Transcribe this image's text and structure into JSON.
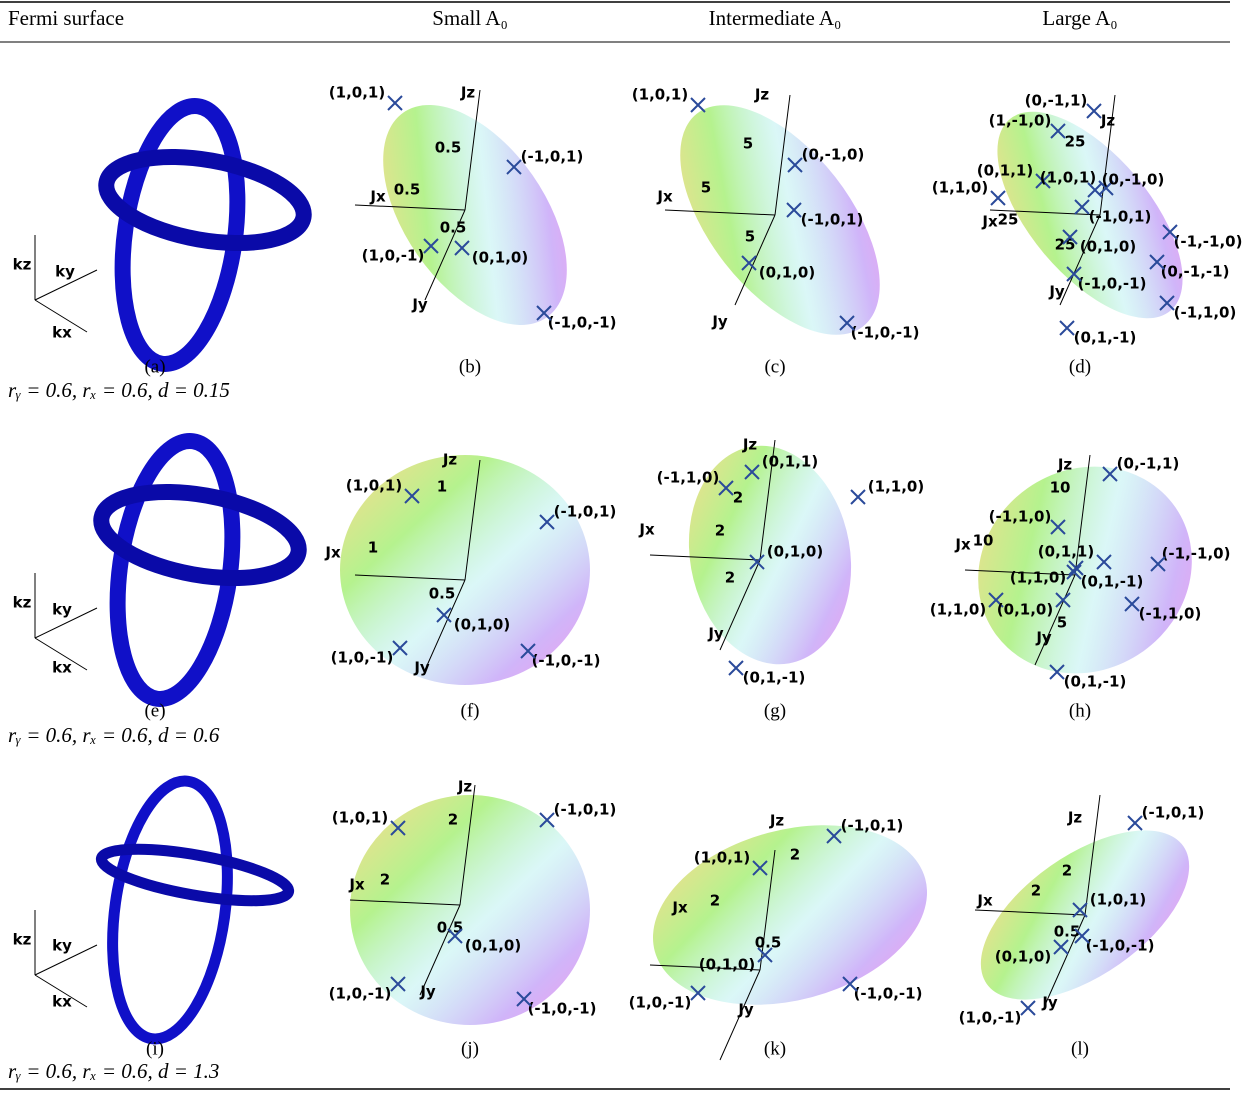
{
  "header": [
    "Fermi surface",
    "Small A₀",
    "Intermediate A₀",
    "Large A₀"
  ],
  "rows": [
    {
      "parameters": "rᵧ = 0.6,  rₓ = 0.6,  d = 0.15",
      "fermi": {
        "caption": "(a)",
        "axes": [
          "kz",
          "ky",
          "kx"
        ]
      },
      "panels": [
        {
          "caption": "(b)",
          "labels": [
            "(1,0,1)",
            "Jz",
            "0.5",
            "(-1,0,1)",
            "0.5",
            "Jx",
            "0.5",
            "(1,0,-1)",
            "(0,1,0)",
            "Jy",
            "(-1,0,-1)"
          ]
        },
        {
          "caption": "(c)",
          "labels": [
            "(1,0,1)",
            "Jz",
            "5",
            "(0,-1,0)",
            "5",
            "Jx",
            "(-1,0,1)",
            "5",
            "(0,1,0)",
            "Jy",
            "(-1,0,-1)"
          ]
        },
        {
          "caption": "(d)",
          "labels": [
            "(0,-1,1)",
            "(1,-1,0)",
            "Jz",
            "25",
            "(0,1,1)",
            "(1,0,1)",
            "(0,-1,0)",
            "(1,1,0)",
            "Jx",
            "25",
            "(-1,0,1)",
            "25",
            "(0,1,0)",
            "(-1,-1,0)",
            "(0,-1,-1)",
            "(-1,0,-1)",
            "Jy",
            "(-1,1,0)",
            "(0,1,-1)"
          ]
        }
      ]
    },
    {
      "parameters": "rᵧ = 0.6,  rₓ = 0.6,  d = 0.6",
      "fermi": {
        "caption": "(e)",
        "axes": [
          "kz",
          "ky",
          "kx"
        ]
      },
      "panels": [
        {
          "caption": "(f)",
          "labels": [
            "Jz",
            "(1,0,1)",
            "1",
            "(-1,0,1)",
            "1",
            "Jx",
            "0.5",
            "(0,1,0)",
            "(1,0,-1)",
            "Jy",
            "(-1,0,-1)"
          ]
        },
        {
          "caption": "(g)",
          "labels": [
            "Jz",
            "(0,1,1)",
            "(-1,1,0)",
            "(1,1,0)",
            "2",
            "2",
            "Jx",
            "(0,1,0)",
            "2",
            "Jy",
            "(0,1,-1)"
          ]
        },
        {
          "caption": "(h)",
          "labels": [
            "Jz",
            "(0,-1,1)",
            "10",
            "(-1,1,0)",
            "Jx",
            "10",
            "(0,1,1)",
            "(-1,-1,0)",
            "(1,1,0)",
            "(0,1,-1)",
            "(1,1,0)",
            "(0,1,0)",
            "5",
            "(-1,1,0)",
            "Jy",
            "(0,1,-1)"
          ]
        }
      ]
    },
    {
      "parameters": "rᵧ = 0.6,  rₓ = 0.6,  d = 1.3",
      "fermi": {
        "caption": "(i)",
        "axes": [
          "kz",
          "ky",
          "kx"
        ]
      },
      "panels": [
        {
          "caption": "(j)",
          "labels": [
            "Jz",
            "(1,0,1)",
            "2",
            "(-1,0,1)",
            "Jx",
            "2",
            "0.5",
            "(0,1,0)",
            "(1,0,-1)",
            "Jy",
            "(-1,0,-1)"
          ]
        },
        {
          "caption": "(k)",
          "labels": [
            "Jz",
            "(-1,0,1)",
            "2",
            "(1,0,1)",
            "2",
            "Jx",
            "0.5",
            "(0,1,0)",
            "(1,0,-1)",
            "Jy",
            "(-1,0,-1)"
          ]
        },
        {
          "caption": "(l)",
          "labels": [
            "Jz",
            "(-1,0,1)",
            "2",
            "Jx",
            "2",
            "(1,0,1)",
            "0.5",
            "(-1,0,-1)",
            "(0,1,0)",
            "Jy",
            "(1,0,-1)"
          ]
        }
      ]
    }
  ]
}
